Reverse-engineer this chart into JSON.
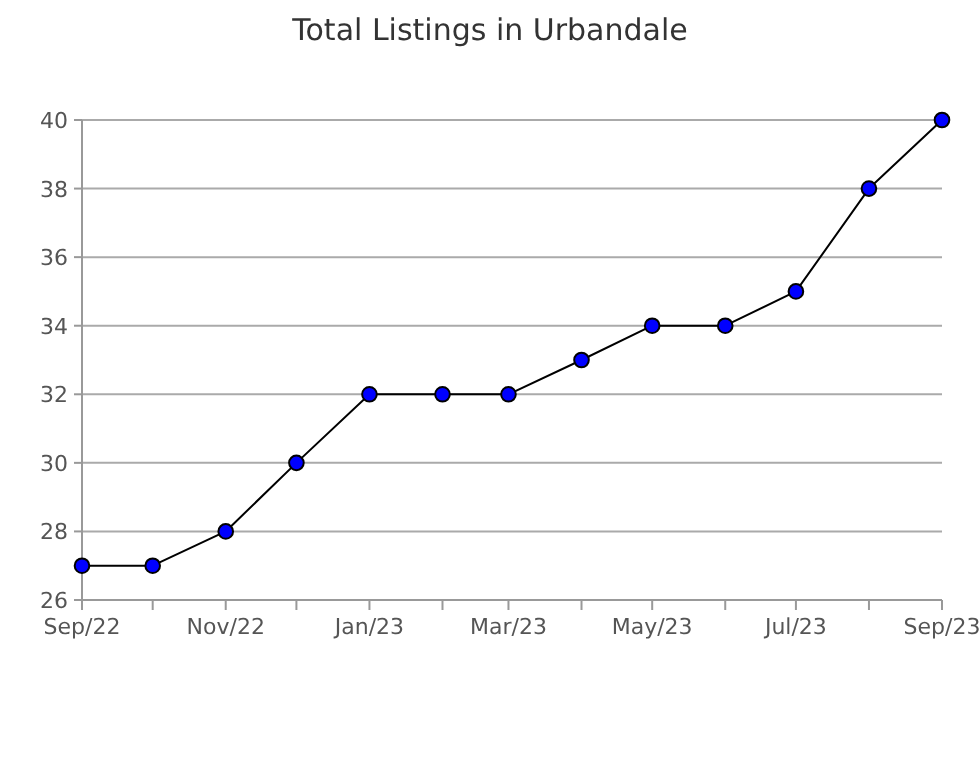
{
  "chart_data": {
    "type": "line",
    "title": "Total Listings in Urbandale",
    "x": [
      "2022-09",
      "2022-10",
      "2022-11",
      "2022-12",
      "2023-01",
      "2023-02",
      "2023-03",
      "2023-04",
      "2023-05",
      "2023-06",
      "2023-07",
      "2023-08",
      "2023-09"
    ],
    "series": [
      {
        "color": "#0000ff",
        "values": [
          27,
          27,
          28,
          30,
          32,
          32,
          32,
          33,
          34,
          34,
          35,
          38,
          40
        ]
      }
    ],
    "xlim": [
      "2022-09",
      "2023-09"
    ],
    "xticks": [
      {
        "value": "2022-09",
        "label": "Sep/22"
      },
      {
        "value": "2022-10",
        "label": null
      },
      {
        "value": "2022-11",
        "label": "Nov/22"
      },
      {
        "value": "2022-12",
        "label": null
      },
      {
        "value": "2023-01",
        "label": "Jan/23"
      },
      {
        "value": "2023-02",
        "label": null
      },
      {
        "value": "2023-03",
        "label": "Mar/23"
      },
      {
        "value": "2023-04",
        "label": null
      },
      {
        "value": "2023-05",
        "label": "May/23"
      },
      {
        "value": "2023-06",
        "label": null
      },
      {
        "value": "2023-07",
        "label": "Jul/23"
      },
      {
        "value": "2023-08",
        "label": null
      },
      {
        "value": "2023-09",
        "label": "Sep/23"
      }
    ],
    "ylim": [
      26,
      40
    ],
    "yticks": [
      26,
      28,
      30,
      32,
      34,
      36,
      38,
      40
    ],
    "grid": "y",
    "marker": "circle",
    "line_style": "solid"
  }
}
